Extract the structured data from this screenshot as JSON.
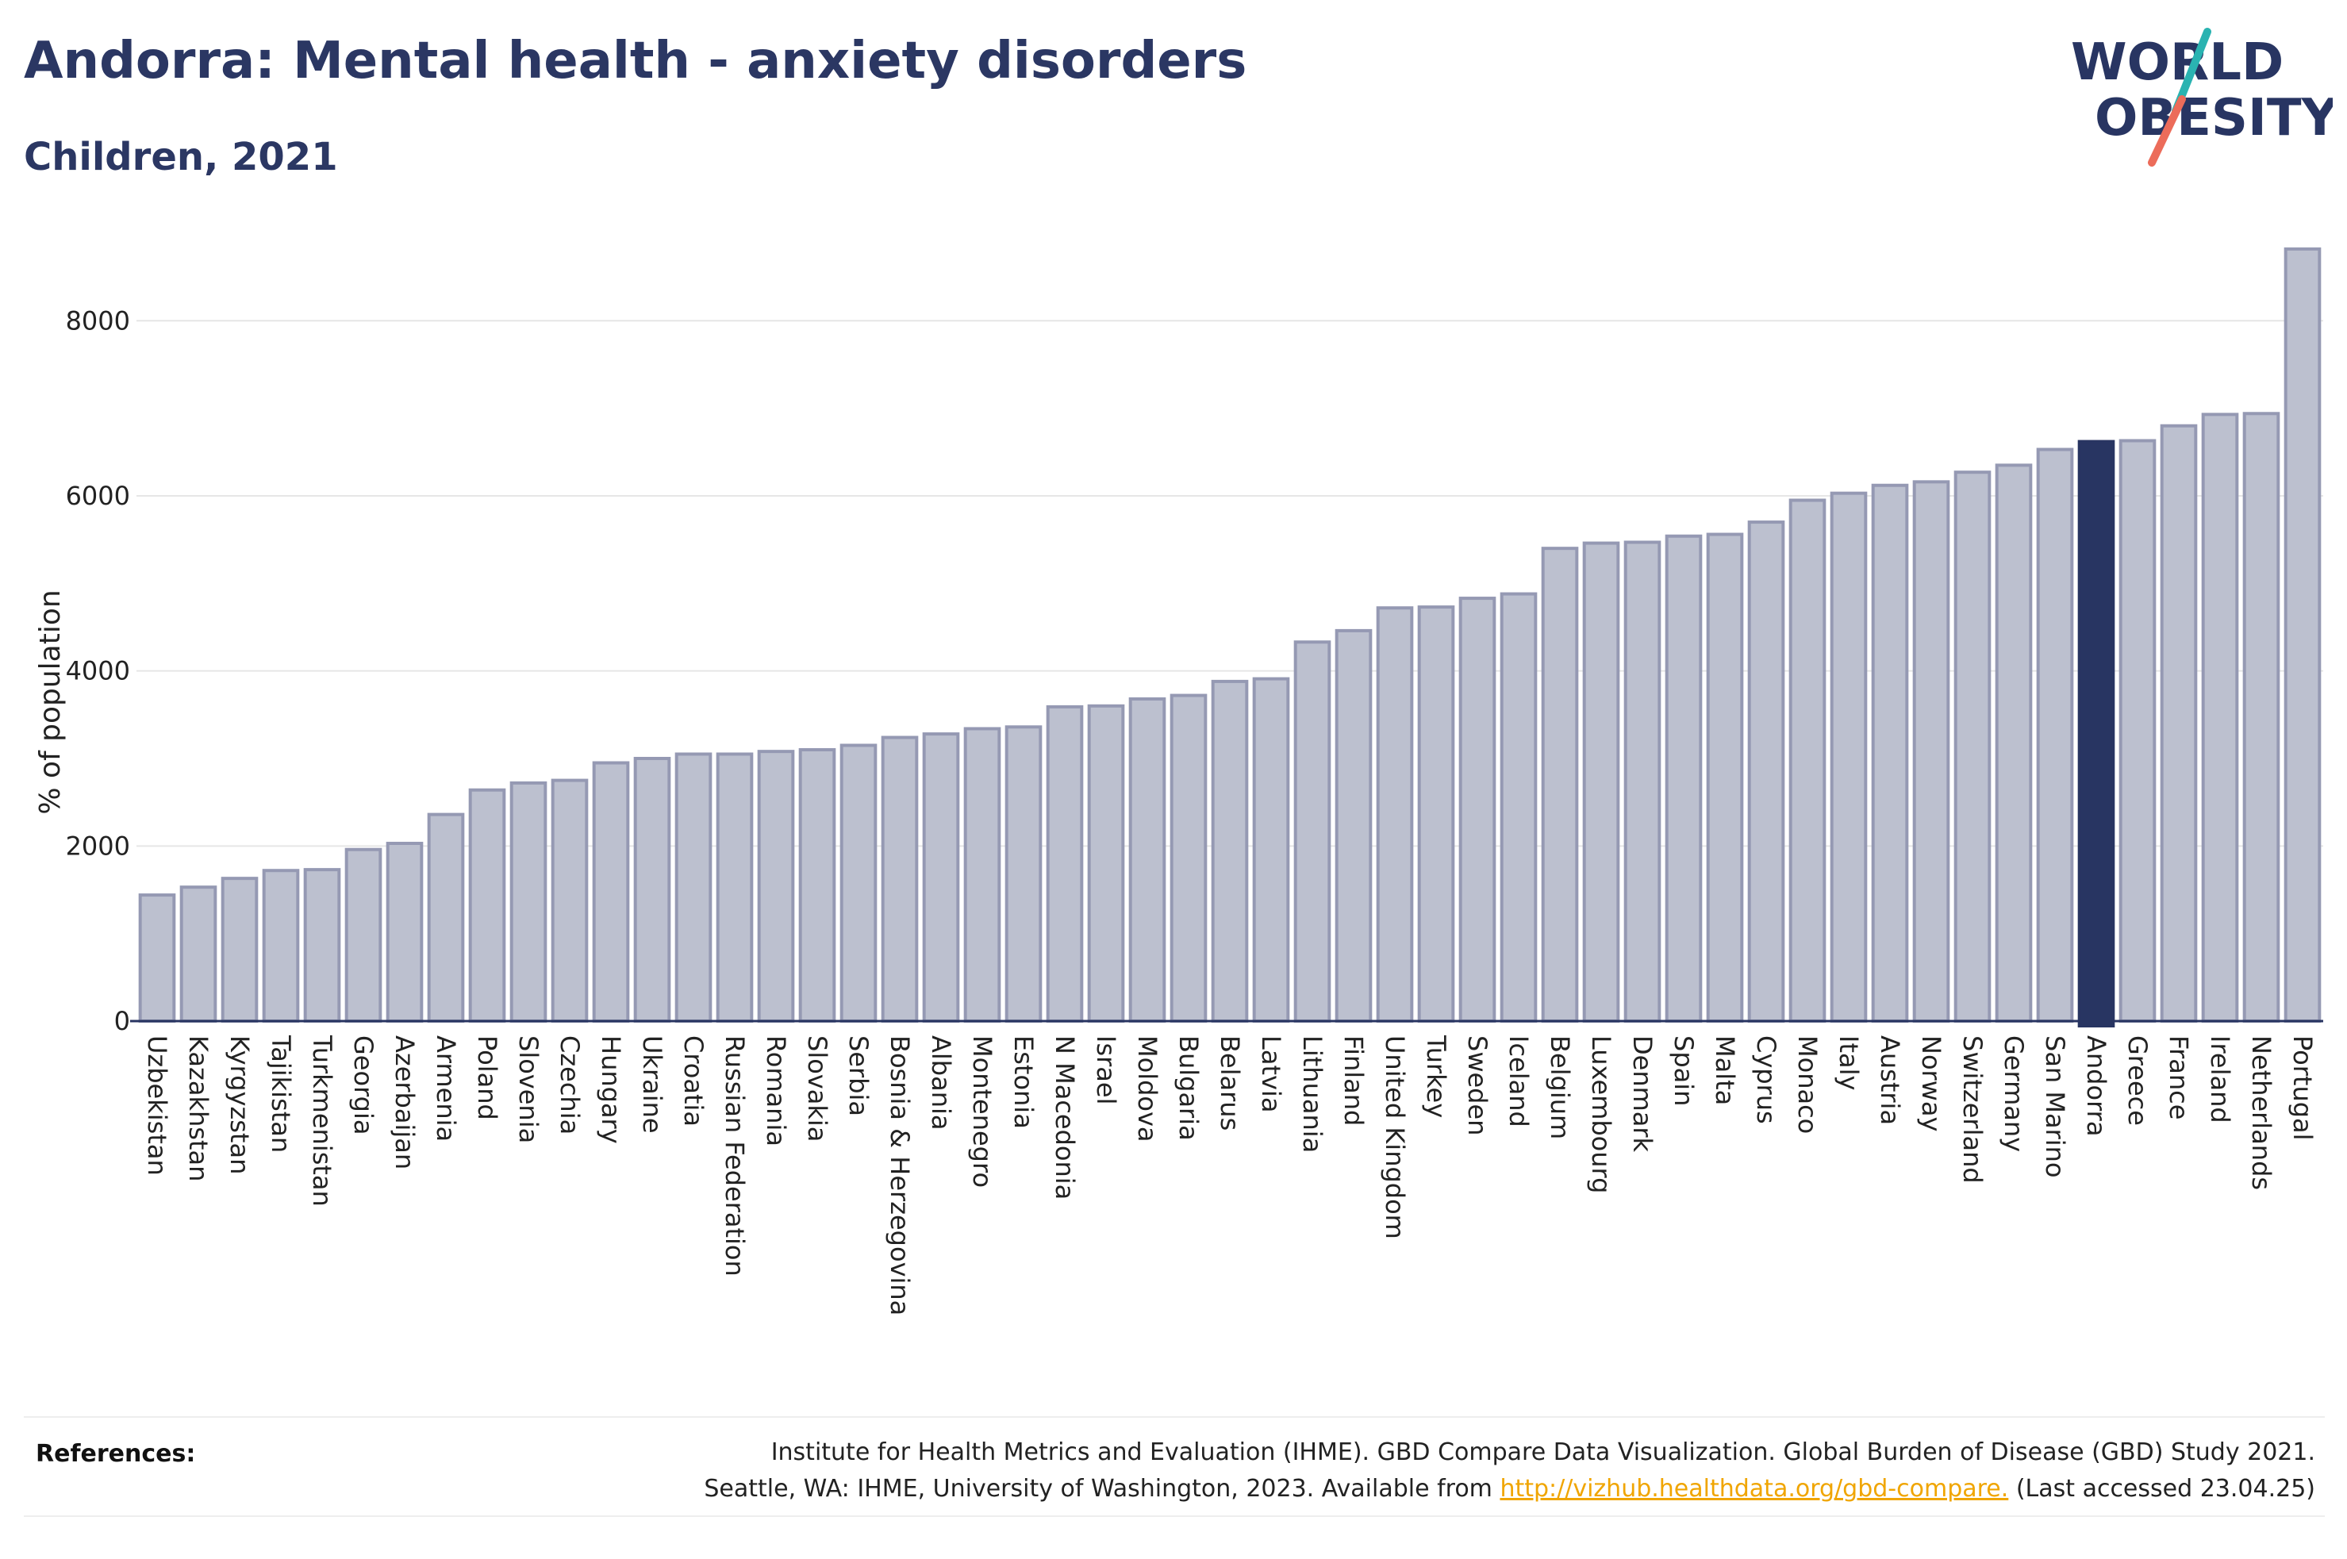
{
  "header": {
    "title": "Andorra: Mental health - anxiety disorders",
    "subtitle": "Children, 2021"
  },
  "logo": {
    "line1": "WORLD",
    "line2": "OBESITY"
  },
  "chart_data": {
    "type": "bar",
    "title": "Andorra: Mental health - anxiety disorders",
    "subtitle": "Children, 2021",
    "xlabel": "",
    "ylabel": "% of population",
    "ylim": [
      0,
      8900
    ],
    "yticks": [
      0,
      2000,
      4000,
      6000,
      8000
    ],
    "grid": true,
    "highlight": "Andorra",
    "colors": {
      "bar": "#bcc0cf",
      "bar_edge": "#9599b3",
      "highlight": "#283562",
      "grid": "#e6e6e6",
      "axis": "#283562"
    },
    "categories": [
      "Uzbekistan",
      "Kazakhstan",
      "Kyrgyzstan",
      "Tajikistan",
      "Turkmenistan",
      "Georgia",
      "Azerbaijan",
      "Armenia",
      "Poland",
      "Slovenia",
      "Czechia",
      "Hungary",
      "Ukraine",
      "Croatia",
      "Russian Federation",
      "Romania",
      "Slovakia",
      "Serbia",
      "Bosnia & Herzegovina",
      "Albania",
      "Montenegro",
      "Estonia",
      "N Macedonia",
      "Israel",
      "Moldova",
      "Bulgaria",
      "Belarus",
      "Latvia",
      "Lithuania",
      "Finland",
      "United Kingdom",
      "Turkey",
      "Sweden",
      "Iceland",
      "Belgium",
      "Luxembourg",
      "Denmark",
      "Spain",
      "Malta",
      "Cyprus",
      "Monaco",
      "Italy",
      "Austria",
      "Norway",
      "Switzerland",
      "Germany",
      "San Marino",
      "Andorra",
      "Greece",
      "France",
      "Ireland",
      "Netherlands",
      "Portugal"
    ],
    "values": [
      1440,
      1530,
      1630,
      1720,
      1730,
      1960,
      2030,
      2360,
      2640,
      2720,
      2750,
      2950,
      3000,
      3050,
      3050,
      3080,
      3100,
      3150,
      3240,
      3280,
      3340,
      3360,
      3590,
      3600,
      3680,
      3720,
      3880,
      3910,
      4330,
      4460,
      4720,
      4730,
      4830,
      4880,
      5400,
      5460,
      5470,
      5540,
      5560,
      5700,
      5950,
      6030,
      6120,
      6160,
      6270,
      6350,
      6530,
      6620,
      6630,
      6800,
      6930,
      6940,
      8820
    ]
  },
  "references": {
    "label": "References:",
    "line1": "Institute for Health Metrics and Evaluation (IHME). GBD Compare Data Visualization. Global Burden of Disease (GBD) Study 2021.",
    "line2_prefix": "Seattle, WA: IHME, University of Washington, 2023. Available from ",
    "link": "http://vizhub.healthdata.org/gbd-compare.",
    "line2_suffix": " (Last accessed 23.04.25)"
  }
}
